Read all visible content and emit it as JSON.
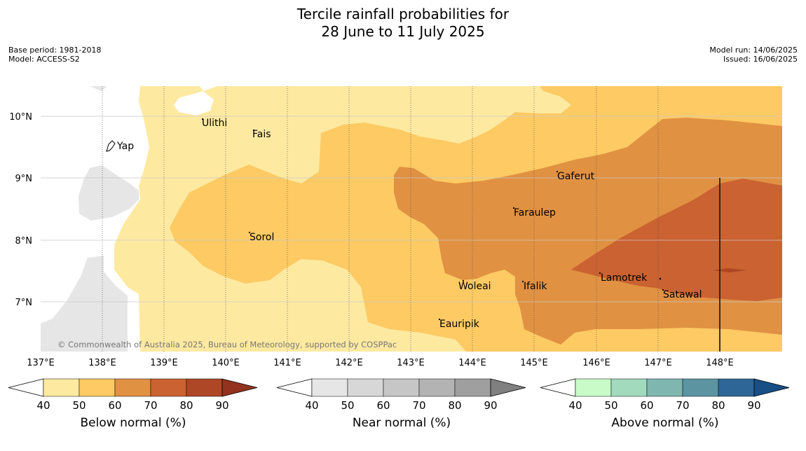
{
  "title_line1": "Tercile rainfall probabilities for",
  "title_line2": "28 June to 11 July 2025",
  "base_period": "Base period: 1981-2018",
  "model": "Model: ACCESS-S2",
  "model_run": "Model run: 14/06/2025",
  "issued": "Issued: 16/06/2025",
  "copyright": "© Commonwealth of Australia 2025, Bureau of Meteorology, supported by COSPPac",
  "lat_labels": [
    "10°N",
    "9°N",
    "8°N",
    "7°N"
  ],
  "lon_labels": [
    "137°E",
    "138°E",
    "139°E",
    "140°E",
    "141°E",
    "142°E",
    "143°E",
    "144°E",
    "145°E",
    "146°E",
    "147°E",
    "148°E"
  ],
  "places": [
    {
      "name": "Ulithi"
    },
    {
      "name": "Fais"
    },
    {
      "name": "Yap"
    },
    {
      "name": "Gaferut"
    },
    {
      "name": "Faraulep"
    },
    {
      "name": "Sorol"
    },
    {
      "name": "Lamotrek"
    },
    {
      "name": "Woleai"
    },
    {
      "name": "Ifalik"
    },
    {
      "name": "Satawal"
    },
    {
      "name": "Eauripik"
    }
  ],
  "colorbars": {
    "below": {
      "label": "Below normal (%)",
      "ticks": [
        "40",
        "50",
        "60",
        "70",
        "80",
        "90"
      ],
      "colors": [
        "#ffffff",
        "#fee9a1",
        "#fdca63",
        "#e09142",
        "#ca6231",
        "#ae4725",
        "#93321e"
      ]
    },
    "near": {
      "label": "Near normal (%)",
      "ticks": [
        "40",
        "50",
        "60",
        "70",
        "80",
        "90"
      ],
      "colors": [
        "#ffffff",
        "#e6e6e6",
        "#d7d7d7",
        "#c6c6c6",
        "#b3b3b3",
        "#9f9f9f",
        "#808080"
      ]
    },
    "above": {
      "label": "Above normal (%)",
      "ticks": [
        "40",
        "50",
        "60",
        "70",
        "80",
        "90"
      ],
      "colors": [
        "#ffffff",
        "#c9fbc9",
        "#a2dabd",
        "#80b6b0",
        "#5c94a2",
        "#2f6698",
        "#174f86"
      ]
    }
  },
  "map_colors": {
    "no_data": "#e6e6e6",
    "below_40_50": "#fee9a1",
    "below_50_60": "#fdca63",
    "below_60_70": "#e09142",
    "below_70_80": "#ca6231"
  }
}
